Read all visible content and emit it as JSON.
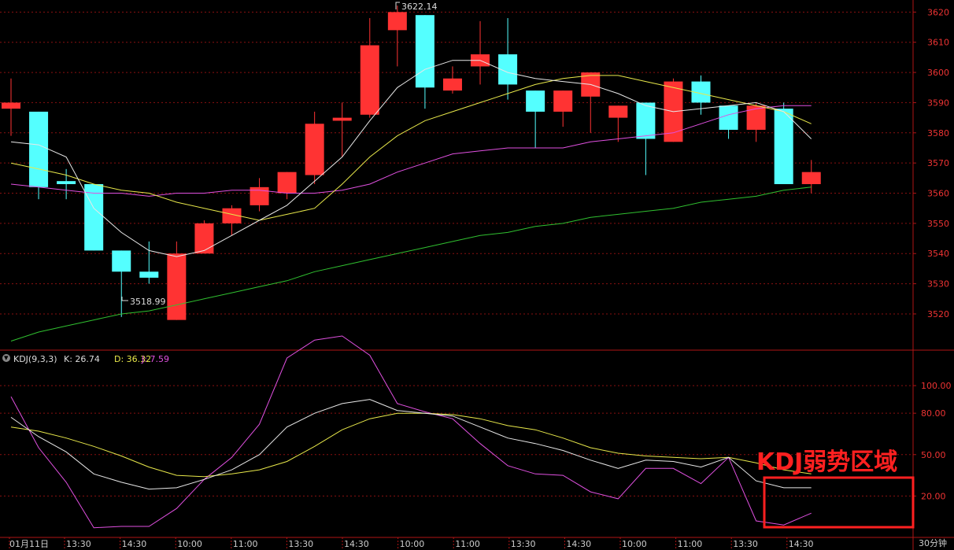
{
  "chart_data": [
    {
      "type": "candlestick",
      "panel": "price",
      "y_ticks": [
        "3620",
        "3610",
        "3600",
        "3590",
        "3580",
        "3570",
        "3560",
        "3550",
        "3540",
        "3530",
        "3520"
      ],
      "ylim": [
        3508,
        3624
      ],
      "candles": [
        {
          "o": 3588,
          "h": 3598,
          "l": 3579,
          "c": 3590
        },
        {
          "o": 3587,
          "h": 3587,
          "l": 3558,
          "c": 3562
        },
        {
          "o": 3564,
          "h": 3568,
          "l": 3558,
          "c": 3563
        },
        {
          "o": 3563,
          "h": 3563,
          "l": 3541,
          "c": 3541
        },
        {
          "o": 3541,
          "h": 3541,
          "l": 3518.99,
          "c": 3534
        },
        {
          "o": 3534,
          "h": 3544,
          "l": 3530,
          "c": 3532
        },
        {
          "o": 3518,
          "h": 3544,
          "l": 3518,
          "c": 3540
        },
        {
          "o": 3540,
          "h": 3551,
          "l": 3540,
          "c": 3550
        },
        {
          "o": 3550,
          "h": 3556,
          "l": 3546,
          "c": 3555
        },
        {
          "o": 3556,
          "h": 3565,
          "l": 3554,
          "c": 3562
        },
        {
          "o": 3560,
          "h": 3567,
          "l": 3558,
          "c": 3567
        },
        {
          "o": 3566,
          "h": 3587,
          "l": 3563,
          "c": 3583
        },
        {
          "o": 3584,
          "h": 3590,
          "l": 3572,
          "c": 3585
        },
        {
          "o": 3586,
          "h": 3618,
          "l": 3585,
          "c": 3609
        },
        {
          "o": 3614,
          "h": 3622.14,
          "l": 3602,
          "c": 3620
        },
        {
          "o": 3619,
          "h": 3619,
          "l": 3588,
          "c": 3595
        },
        {
          "o": 3594,
          "h": 3602,
          "l": 3593,
          "c": 3598
        },
        {
          "o": 3602,
          "h": 3617,
          "l": 3596,
          "c": 3606
        },
        {
          "o": 3606,
          "h": 3618,
          "l": 3591,
          "c": 3596
        },
        {
          "o": 3594,
          "h": 3594,
          "l": 3575,
          "c": 3587
        },
        {
          "o": 3587,
          "h": 3594,
          "l": 3582,
          "c": 3594
        },
        {
          "o": 3592,
          "h": 3600,
          "l": 3580,
          "c": 3600
        },
        {
          "o": 3585,
          "h": 3589,
          "l": 3577,
          "c": 3589
        },
        {
          "o": 3590,
          "h": 3590,
          "l": 3566,
          "c": 3578
        },
        {
          "o": 3577,
          "h": 3598,
          "l": 3577,
          "c": 3597
        },
        {
          "o": 3597,
          "h": 3599,
          "l": 3586,
          "c": 3590
        },
        {
          "o": 3589,
          "h": 3589,
          "l": 3578,
          "c": 3581
        },
        {
          "o": 3581,
          "h": 3590,
          "l": 3577,
          "c": 3589
        },
        {
          "o": 3588,
          "h": 3590,
          "l": 3563,
          "c": 3563
        },
        {
          "o": 3563,
          "h": 3571,
          "l": 3560,
          "c": 3567
        }
      ],
      "ma_white": [
        3577,
        3576,
        3572,
        3555,
        3547,
        3541,
        3539,
        3541,
        3546,
        3551,
        3556,
        3564,
        3572,
        3584,
        3595,
        3601,
        3604,
        3604,
        3600,
        3598,
        3597,
        3596,
        3593,
        3589,
        3587,
        3588,
        3589,
        3590,
        3587,
        3578
      ],
      "ma_yellow": [
        3570,
        3568,
        3566,
        3563,
        3561,
        3560,
        3557,
        3555,
        3553,
        3551,
        3553,
        3555,
        3563,
        3572,
        3579,
        3584,
        3587,
        3590,
        3593,
        3596,
        3598,
        3599,
        3599,
        3597,
        3595,
        3593,
        3591,
        3589,
        3587,
        3583
      ],
      "ma_magenta": [
        3563,
        3562,
        3561,
        3560,
        3560,
        3559,
        3560,
        3560,
        3561,
        3561,
        3560,
        3560,
        3561,
        3563,
        3567,
        3570,
        3573,
        3574,
        3575,
        3575,
        3575,
        3577,
        3578,
        3579,
        3580,
        3583,
        3586,
        3588,
        3589,
        3589
      ],
      "ma_green": [
        3511,
        3514,
        3516,
        3518,
        3520,
        3521,
        3523,
        3525,
        3527,
        3529,
        3531,
        3534,
        3536,
        3538,
        3540,
        3542,
        3544,
        3546,
        3547,
        3549,
        3550,
        3552,
        3553,
        3554,
        3555,
        3557,
        3558,
        3559,
        3561,
        3562
      ],
      "annotations": {
        "high": "3622.14",
        "low": "3518.99"
      }
    },
    {
      "type": "line",
      "panel": "kdj",
      "title": "KDJ(9,3,3)",
      "k_label": "K: 26.74",
      "d_label": "D: 36.32",
      "j_label": "J: 7.59",
      "y_ticks": [
        "100.00",
        "80.00",
        "50.00",
        "20.00"
      ],
      "ylim": [
        -10,
        124
      ],
      "K": [
        77,
        63,
        52,
        36,
        30,
        25,
        26,
        32,
        39,
        50,
        70,
        80,
        87,
        90,
        82,
        80,
        78,
        70,
        62,
        58,
        53,
        46,
        40,
        46,
        45,
        41,
        48,
        31,
        26,
        26
      ],
      "D": [
        70,
        67,
        62,
        56,
        49,
        41,
        35,
        34,
        36,
        39,
        45,
        56,
        68,
        76,
        80,
        80,
        79,
        76,
        71,
        68,
        62,
        55,
        51,
        49,
        48,
        47,
        48,
        44,
        39,
        36
      ],
      "J": [
        92,
        55,
        30,
        -3,
        -2,
        -2,
        11,
        32,
        48,
        72,
        120,
        133,
        136,
        122,
        87,
        81,
        76,
        58,
        42,
        36,
        35,
        23,
        18,
        40,
        40,
        29,
        48,
        2,
        -1,
        7.59
      ]
    }
  ],
  "x_labels": [
    "01月11日",
    "13:30",
    "14:30",
    "10:00",
    "11:00",
    "13:30",
    "14:30",
    "10:00",
    "11:00",
    "13:30",
    "14:30",
    "10:00",
    "11:00",
    "13:30",
    "14:30"
  ],
  "period_label": "30分钟",
  "warning_text": "KDJ弱势区域",
  "colors": {
    "up": "#ff3333",
    "down": "#54ffff",
    "grid": "#8a1010",
    "white": "#e8e8e8",
    "yellow": "#e8e84a",
    "magenta": "#e050e0",
    "green": "#30c030"
  }
}
